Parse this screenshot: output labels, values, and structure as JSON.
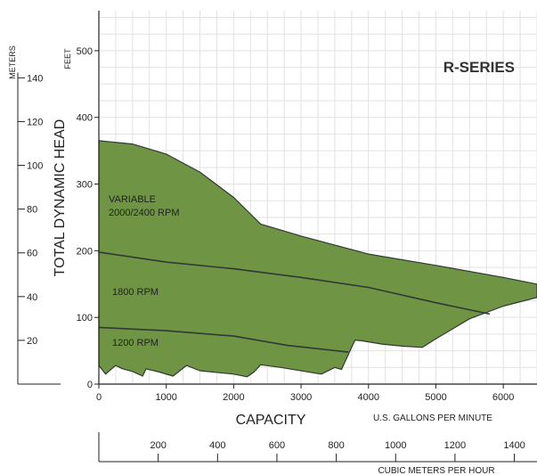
{
  "chart_data": {
    "type": "area",
    "title": "R-SERIES",
    "ylabel": "TOTAL DYNAMIC HEAD",
    "ylabel_feet": "FEET",
    "ylabel_meters": "METERS",
    "xlabel": "CAPACITY",
    "xlabel_gpm": "U.S. GALLONS PER MINUTE",
    "xlabel_m3h": "CUBIC METERS PER HOUR",
    "xlim": [
      0,
      6500
    ],
    "ylim": [
      0,
      560
    ],
    "x_ticks": [
      0,
      1000,
      2000,
      3000,
      4000,
      5000,
      6000
    ],
    "y_ticks_feet": [
      0,
      100,
      200,
      300,
      400,
      500
    ],
    "y_ticks_meters": [
      20,
      40,
      60,
      80,
      100,
      120,
      140
    ],
    "x_ticks_m3h": [
      200,
      400,
      600,
      800,
      1000,
      1200,
      1400
    ],
    "grid": true,
    "fill_color": "#6e9444",
    "line_color": "#2f3a33",
    "region_top": [
      [
        0,
        365
      ],
      [
        500,
        360
      ],
      [
        1000,
        345
      ],
      [
        1500,
        318
      ],
      [
        2000,
        280
      ],
      [
        2400,
        240
      ],
      [
        3000,
        222
      ],
      [
        4000,
        195
      ],
      [
        5000,
        178
      ],
      [
        6000,
        160
      ],
      [
        6500,
        150
      ]
    ],
    "region_bottom": [
      [
        6500,
        130
      ],
      [
        6000,
        117
      ],
      [
        5500,
        98
      ],
      [
        5000,
        68
      ],
      [
        4800,
        55
      ],
      [
        4500,
        57
      ],
      [
        4200,
        60
      ],
      [
        3900,
        65
      ],
      [
        3800,
        66
      ],
      [
        3600,
        22
      ],
      [
        3500,
        25
      ],
      [
        3300,
        15
      ],
      [
        2700,
        25
      ],
      [
        2400,
        29
      ],
      [
        2300,
        18
      ],
      [
        2200,
        11
      ],
      [
        2000,
        15
      ],
      [
        1500,
        20
      ],
      [
        1300,
        28
      ],
      [
        1100,
        12
      ],
      [
        900,
        18
      ],
      [
        700,
        23
      ],
      [
        650,
        12
      ],
      [
        500,
        19
      ],
      [
        350,
        23
      ],
      [
        250,
        28
      ],
      [
        180,
        22
      ],
      [
        100,
        15
      ],
      [
        0,
        28
      ]
    ],
    "series": [
      {
        "name": "VARIABLE 2000/2400 RPM",
        "values": [
          [
            0,
            365
          ],
          [
            500,
            360
          ],
          [
            1000,
            345
          ],
          [
            1500,
            318
          ],
          [
            2000,
            280
          ],
          [
            2400,
            240
          ],
          [
            3000,
            222
          ],
          [
            4000,
            195
          ],
          [
            5000,
            178
          ],
          [
            6000,
            160
          ],
          [
            6500,
            150
          ]
        ]
      },
      {
        "name": "1800 RPM",
        "values": [
          [
            0,
            198
          ],
          [
            1000,
            183
          ],
          [
            2000,
            173
          ],
          [
            3000,
            160
          ],
          [
            4000,
            145
          ],
          [
            5000,
            122
          ],
          [
            5800,
            105
          ]
        ]
      },
      {
        "name": "1200 RPM",
        "values": [
          [
            0,
            85
          ],
          [
            1000,
            80
          ],
          [
            2000,
            72
          ],
          [
            2800,
            58
          ],
          [
            3700,
            48
          ]
        ]
      }
    ]
  }
}
